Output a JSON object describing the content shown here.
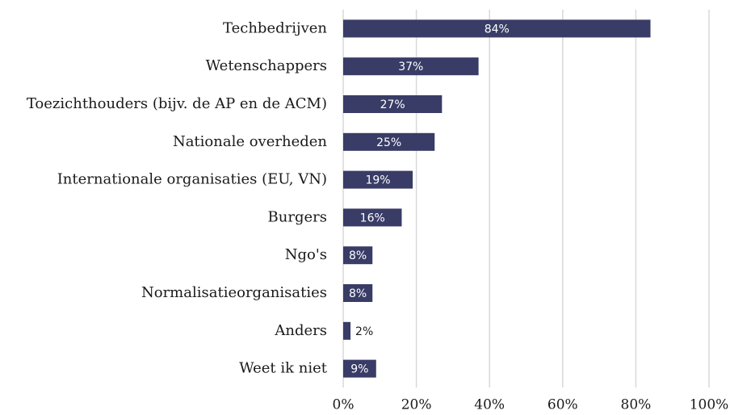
{
  "chart_data": {
    "type": "barh",
    "categories": [
      "Techbedrijven",
      "Wetenschappers",
      "Toezichthouders (bijv. de AP en de ACM)",
      "Nationale overheden",
      "Internationale organisaties (EU, VN)",
      "Burgers",
      "Ngo's",
      "Normalisatieorganisaties",
      "Anders",
      "Weet ik niet"
    ],
    "values": [
      84,
      37,
      27,
      25,
      19,
      16,
      8,
      8,
      2,
      9
    ],
    "value_labels": [
      "84%",
      "37%",
      "27%",
      "25%",
      "19%",
      "16%",
      "8%",
      "8%",
      "2%",
      "9%"
    ],
    "color": "#383c66",
    "xlim": [
      0,
      100
    ],
    "xticks": [
      {
        "value": 0,
        "label": "0%"
      },
      {
        "value": 20,
        "label": "20%"
      },
      {
        "value": 40,
        "label": "40%"
      },
      {
        "value": 60,
        "label": "60%"
      },
      {
        "value": 80,
        "label": "80%"
      },
      {
        "value": 100,
        "label": "100%"
      }
    ],
    "grid": true
  }
}
